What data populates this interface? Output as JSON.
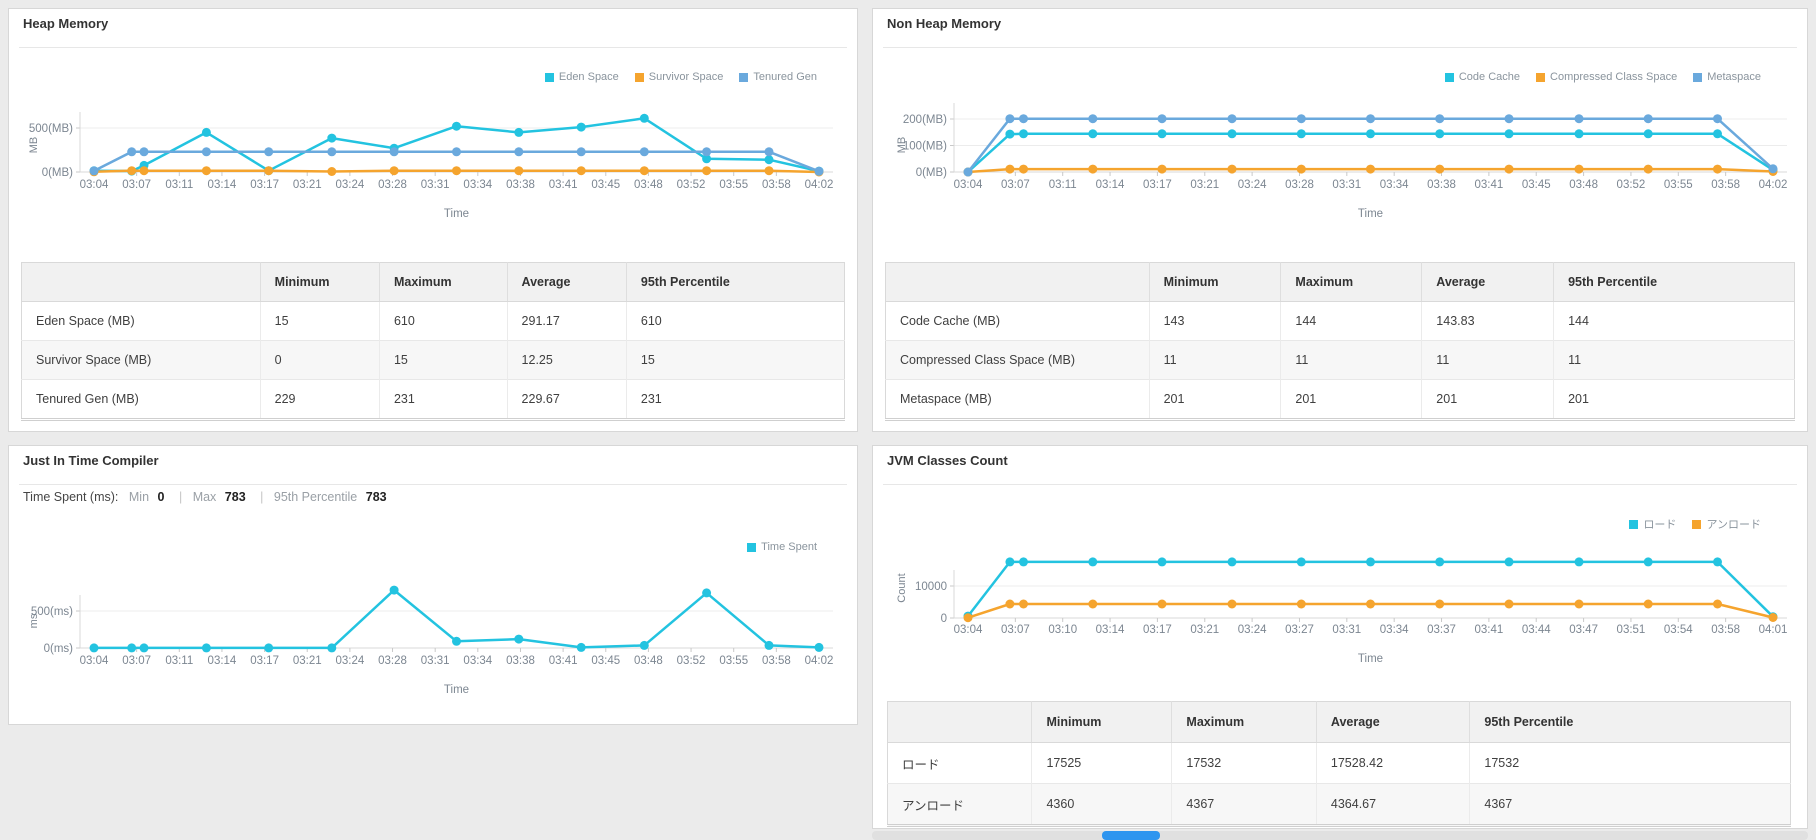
{
  "colors": {
    "cyan": "#23c3e0",
    "orange": "#f5a42e",
    "blue": "#6aa9dd",
    "grid": "#ececec",
    "axis": "#d8d8d8",
    "tick_text": "#7c8691",
    "scroll_thumb": "#2e95ef"
  },
  "table": {
    "headers": [
      "",
      "Minimum",
      "Maximum",
      "Average",
      "95th Percentile"
    ]
  },
  "panels": {
    "heap": {
      "title": "Heap Memory",
      "chart_index": 0,
      "table_rows": [
        {
          "label": "Eden Space (MB)",
          "values": [
            "15",
            "610",
            "291.17",
            "610"
          ]
        },
        {
          "label": "Survivor Space (MB)",
          "values": [
            "0",
            "15",
            "12.25",
            "15"
          ]
        },
        {
          "label": "Tenured Gen (MB)",
          "values": [
            "229",
            "231",
            "229.67",
            "231"
          ]
        }
      ]
    },
    "nonheap": {
      "title": "Non Heap Memory",
      "chart_index": 1,
      "table_rows": [
        {
          "label": "Code Cache (MB)",
          "values": [
            "143",
            "144",
            "143.83",
            "144"
          ]
        },
        {
          "label": "Compressed Class Space (MB)",
          "values": [
            "11",
            "11",
            "11",
            "11"
          ]
        },
        {
          "label": "Metaspace (MB)",
          "values": [
            "201",
            "201",
            "201",
            "201"
          ]
        }
      ]
    },
    "jit": {
      "title": "Just In Time Compiler",
      "chart_index": 2,
      "stats": {
        "prefix": "Time Spent (ms):",
        "min_label": "Min",
        "min_value": "0",
        "sep": "|",
        "max_label": "Max",
        "max_value": "783",
        "sep2": "|",
        "p95_label": "95th Percentile",
        "p95_value": "783"
      }
    },
    "classes": {
      "title": "JVM Classes Count",
      "chart_index": 3,
      "table_rows": [
        {
          "label": "ロード",
          "values": [
            "17525",
            "17532",
            "17528.42",
            "17532"
          ]
        },
        {
          "label": "アンロード",
          "values": [
            "4360",
            "4367",
            "4364.67",
            "4367"
          ]
        }
      ]
    }
  },
  "chart_data": [
    {
      "type": "line",
      "title": "Heap Memory",
      "xlabel": "Time",
      "ylabel": "MB",
      "ylim": [
        0,
        700
      ],
      "grid": "horizontal",
      "legend_position": "top-right",
      "yticks": [
        {
          "v": 0,
          "label": "0(MB)"
        },
        {
          "v": 500,
          "label": "500(MB)"
        }
      ],
      "x_tick_labels": [
        "03:04",
        "03:07",
        "03:11",
        "03:14",
        "03:17",
        "03:21",
        "03:24",
        "03:28",
        "03:31",
        "03:34",
        "03:38",
        "03:41",
        "03:45",
        "03:48",
        "03:52",
        "03:55",
        "03:58",
        "04:02"
      ],
      "sample_x": [
        0,
        0.052,
        0.069,
        0.155,
        0.241,
        0.328,
        0.414,
        0.5,
        0.586,
        0.672,
        0.759,
        0.845,
        0.931,
        1
      ],
      "series": [
        {
          "name": "Eden Space",
          "color": "cyan",
          "values": [
            15,
            10,
            75,
            450,
            15,
            385,
            270,
            520,
            450,
            510,
            610,
            150,
            140,
            10
          ]
        },
        {
          "name": "Survivor Space",
          "color": "orange",
          "values": [
            2,
            15,
            15,
            15,
            15,
            6,
            15,
            15,
            15,
            15,
            15,
            15,
            15,
            0
          ]
        },
        {
          "name": "Tenured Gen",
          "color": "blue",
          "values": [
            12,
            230,
            230,
            230,
            230,
            230,
            230,
            230,
            230,
            230,
            230,
            230,
            230,
            8
          ]
        }
      ]
    },
    {
      "type": "line",
      "title": "Non Heap Memory",
      "xlabel": "Time",
      "ylabel": "MB",
      "ylim": [
        0,
        250
      ],
      "grid": "horizontal",
      "legend_position": "top-right",
      "yticks": [
        {
          "v": 0,
          "label": "0(MB)"
        },
        {
          "v": 100,
          "label": "100(MB)"
        },
        {
          "v": 200,
          "label": "200(MB)"
        }
      ],
      "x_tick_labels": [
        "03:04",
        "03:07",
        "03:11",
        "03:14",
        "03:17",
        "03:21",
        "03:24",
        "03:28",
        "03:31",
        "03:34",
        "03:38",
        "03:41",
        "03:45",
        "03:48",
        "03:52",
        "03:55",
        "03:58",
        "04:02"
      ],
      "sample_x": [
        0,
        0.052,
        0.069,
        0.155,
        0.241,
        0.328,
        0.414,
        0.5,
        0.586,
        0.672,
        0.759,
        0.845,
        0.931,
        1
      ],
      "series": [
        {
          "name": "Code Cache",
          "color": "cyan",
          "values": [
            0,
            143,
            144,
            144,
            144,
            144,
            144,
            144,
            144,
            144,
            144,
            144,
            144,
            8
          ]
        },
        {
          "name": "Compressed Class Space",
          "color": "orange",
          "values": [
            0,
            11,
            11,
            11,
            11,
            11,
            11,
            11,
            11,
            11,
            11,
            11,
            11,
            2
          ]
        },
        {
          "name": "Metaspace",
          "color": "blue",
          "values": [
            0,
            201,
            201,
            201,
            201,
            201,
            201,
            201,
            201,
            201,
            201,
            201,
            201,
            12
          ]
        }
      ]
    },
    {
      "type": "line",
      "title": "Just In Time Compiler",
      "xlabel": "Time",
      "ylabel": "ms",
      "ylim": [
        0,
        830
      ],
      "grid": "horizontal",
      "legend_position": "top-right",
      "yticks": [
        {
          "v": 0,
          "label": "0(ms)"
        },
        {
          "v": 500,
          "label": "500(ms)"
        }
      ],
      "x_tick_labels": [
        "03:04",
        "03:07",
        "03:11",
        "03:14",
        "03:17",
        "03:21",
        "03:24",
        "03:28",
        "03:31",
        "03:34",
        "03:38",
        "03:41",
        "03:45",
        "03:48",
        "03:52",
        "03:55",
        "03:58",
        "04:02"
      ],
      "sample_x": [
        0,
        0.052,
        0.069,
        0.155,
        0.241,
        0.328,
        0.414,
        0.5,
        0.586,
        0.672,
        0.759,
        0.845,
        0.931,
        1
      ],
      "series": [
        {
          "name": "Time Spent",
          "color": "cyan",
          "values": [
            2,
            2,
            2,
            2,
            2,
            2,
            783,
            90,
            120,
            8,
            35,
            745,
            35,
            8
          ]
        }
      ]
    },
    {
      "type": "line",
      "title": "JVM Classes Count",
      "xlabel": "Time",
      "ylabel": "Count",
      "ylim": [
        0,
        19000
      ],
      "grid": "horizontal",
      "legend_position": "top-right",
      "yticks": [
        {
          "v": 0,
          "label": "0"
        },
        {
          "v": 10000,
          "label": "10000"
        }
      ],
      "x_tick_labels": [
        "03:04",
        "03:07",
        "03:10",
        "03:14",
        "03:17",
        "03:21",
        "03:24",
        "03:27",
        "03:31",
        "03:34",
        "03:37",
        "03:41",
        "03:44",
        "03:47",
        "03:51",
        "03:54",
        "03:58",
        "04:01"
      ],
      "sample_x": [
        0,
        0.052,
        0.069,
        0.155,
        0.241,
        0.328,
        0.414,
        0.5,
        0.586,
        0.672,
        0.759,
        0.845,
        0.931,
        1
      ],
      "series": [
        {
          "name": "ロード",
          "color": "cyan",
          "values": [
            600,
            17528,
            17528,
            17528,
            17528,
            17528,
            17528,
            17528,
            17528,
            17528,
            17528,
            17528,
            17528,
            400
          ]
        },
        {
          "name": "アンロード",
          "color": "orange",
          "values": [
            80,
            4364,
            4364,
            4364,
            4364,
            4364,
            4364,
            4364,
            4364,
            4364,
            4364,
            4364,
            4364,
            150
          ]
        }
      ]
    }
  ]
}
